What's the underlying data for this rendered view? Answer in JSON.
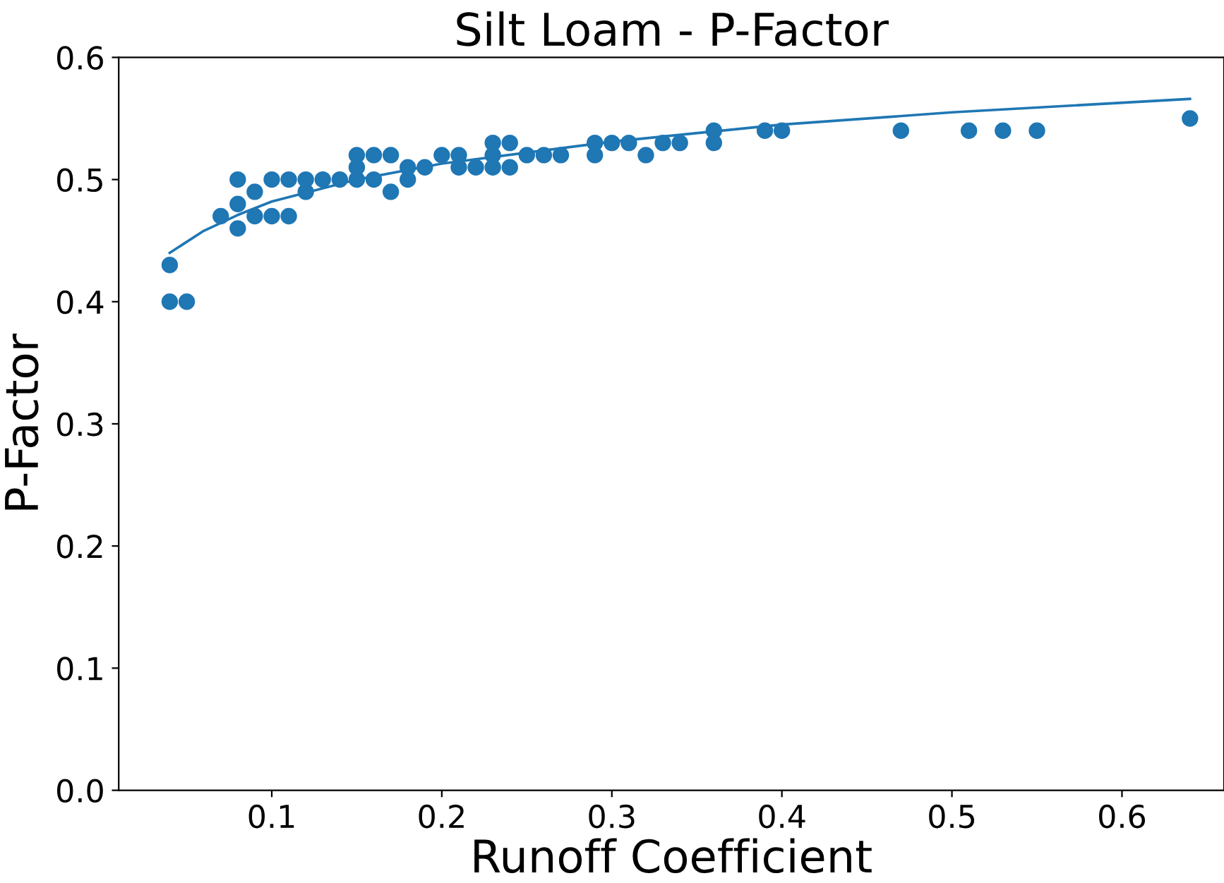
{
  "chart_data": {
    "type": "scatter",
    "title": "Silt Loam - P-Factor",
    "xlabel": "Runoff Coefficient",
    "ylabel": "P-Factor",
    "xlim": [
      0.01,
      0.66
    ],
    "ylim": [
      0,
      0.6
    ],
    "xticks": [
      0.1,
      0.2,
      0.3,
      0.4,
      0.5,
      0.6
    ],
    "yticks": [
      {
        "value": 0,
        "label": "0.0"
      },
      0.1,
      0.2,
      0.3,
      0.4,
      0.5,
      0.6
    ],
    "grid": false,
    "series": [
      {
        "marker": "circle",
        "color": "#1f77b4",
        "x": [
          0.04,
          0.04,
          0.05,
          0.07,
          0.08,
          0.08,
          0.08,
          0.09,
          0.09,
          0.1,
          0.1,
          0.11,
          0.11,
          0.12,
          0.12,
          0.13,
          0.14,
          0.15,
          0.15,
          0.15,
          0.16,
          0.16,
          0.17,
          0.17,
          0.18,
          0.18,
          0.19,
          0.2,
          0.21,
          0.21,
          0.22,
          0.23,
          0.23,
          0.23,
          0.24,
          0.24,
          0.25,
          0.26,
          0.27,
          0.29,
          0.29,
          0.3,
          0.31,
          0.32,
          0.33,
          0.34,
          0.36,
          0.36,
          0.39,
          0.4,
          0.47,
          0.51,
          0.53,
          0.55,
          0.64
        ],
        "values": [
          0.43,
          0.4,
          0.4,
          0.47,
          0.5,
          0.48,
          0.46,
          0.49,
          0.47,
          0.5,
          0.47,
          0.5,
          0.47,
          0.5,
          0.49,
          0.5,
          0.5,
          0.52,
          0.51,
          0.5,
          0.52,
          0.5,
          0.52,
          0.49,
          0.51,
          0.5,
          0.51,
          0.52,
          0.52,
          0.51,
          0.51,
          0.53,
          0.52,
          0.51,
          0.53,
          0.51,
          0.52,
          0.52,
          0.52,
          0.53,
          0.52,
          0.53,
          0.53,
          0.52,
          0.53,
          0.53,
          0.54,
          0.53,
          0.54,
          0.54,
          0.54,
          0.54,
          0.54,
          0.54,
          0.55
        ]
      },
      {
        "type": "line",
        "color": "#1f77b4",
        "x": [
          0.04,
          0.06,
          0.08,
          0.1,
          0.15,
          0.2,
          0.3,
          0.4,
          0.5,
          0.64
        ],
        "values": [
          0.44,
          0.458,
          0.471,
          0.482,
          0.5,
          0.513,
          0.531,
          0.545,
          0.555,
          0.566
        ]
      }
    ]
  }
}
